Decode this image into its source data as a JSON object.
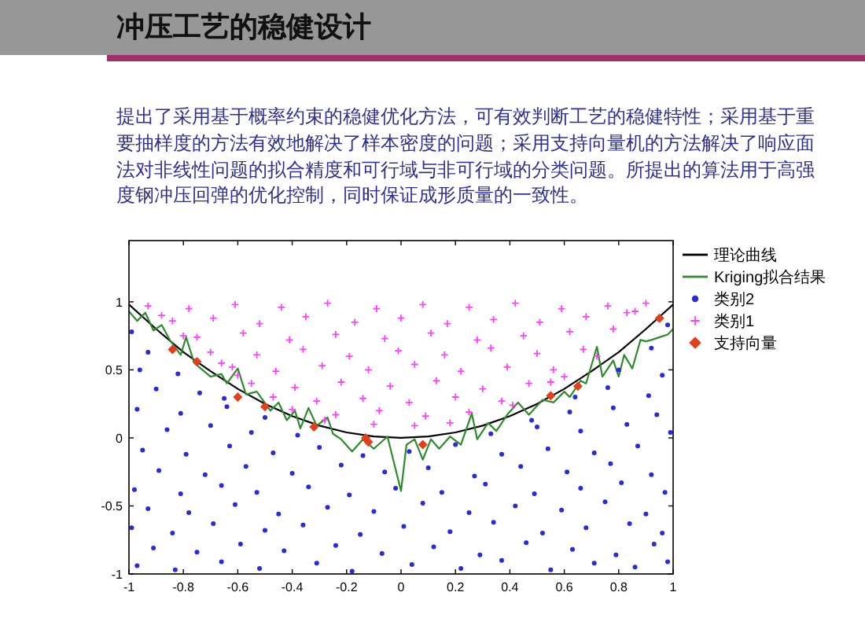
{
  "chart_data": {
    "type": "scatter",
    "title": "冲压工艺的稳健设计",
    "subtitle": "提出了采用基于概率约束的稳健优化方法，可有效判断工艺的稳健特性；采用基于重要抽样度的方法有效地解决了样本密度的问题；采用支持向量机的方法解决了响应面法对非线性问题的拟合精度和可行域与非可行域的分类问题。所提出的算法用于高强度钢冲压回弹的优化控制，同时保证成形质量的一致性。",
    "xlim": [
      -1,
      1
    ],
    "ylim": [
      -1,
      1.45
    ],
    "xticks": [
      -1,
      -0.8,
      -0.6,
      -0.4,
      -0.2,
      0,
      0.2,
      0.4,
      0.6,
      0.8,
      1
    ],
    "yticks": [
      -1,
      -0.5,
      0,
      0.5,
      1
    ],
    "legend": "top right",
    "series": [
      {
        "name": "理论曲线",
        "type": "line",
        "color": "#000000",
        "marker": "none",
        "x": [
          -1,
          -0.9,
          -0.8,
          -0.7,
          -0.6,
          -0.5,
          -0.4,
          -0.3,
          -0.2,
          -0.1,
          0,
          0.1,
          0.2,
          0.3,
          0.4,
          0.5,
          0.6,
          0.7,
          0.8,
          0.9,
          1
        ],
        "values": [
          0.98,
          0.8,
          0.63,
          0.49,
          0.36,
          0.25,
          0.16,
          0.09,
          0.04,
          0.01,
          0,
          0.01,
          0.04,
          0.09,
          0.16,
          0.25,
          0.36,
          0.49,
          0.63,
          0.8,
          0.98
        ]
      },
      {
        "name": "Kriging拟合结果",
        "type": "line",
        "color": "#2e8b2e",
        "marker": "none",
        "x": [
          -1.0,
          -0.97,
          -0.94,
          -0.91,
          -0.88,
          -0.85,
          -0.81,
          -0.79,
          -0.76,
          -0.73,
          -0.7,
          -0.66,
          -0.64,
          -0.6,
          -0.57,
          -0.53,
          -0.48,
          -0.45,
          -0.42,
          -0.39,
          -0.37,
          -0.34,
          -0.31,
          -0.27,
          -0.25,
          -0.22,
          -0.18,
          -0.14,
          -0.1,
          -0.05,
          0.0,
          0.02,
          0.05,
          0.08,
          0.11,
          0.14,
          0.18,
          0.22,
          0.26,
          0.28,
          0.32,
          0.35,
          0.39,
          0.43,
          0.47,
          0.52,
          0.56,
          0.6,
          0.62,
          0.66,
          0.68,
          0.72,
          0.74,
          0.78,
          0.8,
          0.82,
          0.85,
          0.88,
          0.9,
          0.92,
          0.95,
          0.98,
          1.0
        ],
        "values": [
          0.93,
          0.86,
          0.92,
          0.79,
          0.83,
          0.72,
          0.61,
          0.74,
          0.55,
          0.5,
          0.45,
          0.47,
          0.4,
          0.51,
          0.32,
          0.34,
          0.2,
          0.26,
          0.13,
          0.2,
          0.07,
          0.22,
          0.09,
          0.15,
          0.03,
          -0.01,
          -0.1,
          -0.01,
          -0.08,
          0.01,
          -0.39,
          -0.05,
          -0.01,
          -0.16,
          -0.01,
          -0.08,
          0.01,
          -0.05,
          0.18,
          -0.01,
          0.11,
          0.05,
          0.17,
          0.26,
          0.17,
          0.28,
          0.26,
          0.34,
          0.3,
          0.42,
          0.4,
          0.67,
          0.45,
          0.57,
          0.45,
          0.61,
          0.51,
          0.72,
          0.71,
          0.72,
          0.74,
          0.76,
          0.8
        ]
      },
      {
        "name": "类别2",
        "type": "scatter",
        "color": "#2a2ad6",
        "marker": "circle",
        "x": [
          -0.97,
          -0.83,
          -0.66,
          -0.52,
          -0.31,
          -0.18,
          0.04,
          0.22,
          0.37,
          0.55,
          0.71,
          0.86,
          0.98,
          -0.91,
          -0.75,
          -0.59,
          -0.43,
          -0.24,
          -0.07,
          0.12,
          0.29,
          0.46,
          0.63,
          0.79,
          0.93,
          -0.99,
          -0.84,
          -0.69,
          -0.5,
          -0.36,
          -0.15,
          0.01,
          0.18,
          0.34,
          0.52,
          0.68,
          0.84,
          0.96,
          -0.93,
          -0.78,
          -0.61,
          -0.45,
          -0.27,
          -0.1,
          0.08,
          0.25,
          0.42,
          0.59,
          0.75,
          0.9,
          -0.98,
          -0.81,
          -0.66,
          -0.53,
          -0.34,
          -0.19,
          -0.02,
          0.15,
          0.31,
          0.49,
          0.66,
          0.81,
          0.97,
          -0.89,
          -0.72,
          -0.57,
          -0.4,
          -0.22,
          -0.06,
          0.1,
          0.27,
          0.44,
          0.61,
          0.77,
          0.92,
          -0.95,
          -0.79,
          -0.63,
          -0.47,
          -0.3,
          -0.14,
          0.03,
          0.2,
          0.37,
          0.54,
          0.71,
          0.87,
          -0.86,
          -0.7,
          -0.55,
          -0.38,
          0.33,
          0.5,
          0.66,
          0.83,
          0.99,
          -0.97,
          -0.81,
          -0.64,
          -0.5,
          0.48,
          0.62,
          0.78,
          0.94,
          -0.9,
          -0.74,
          -0.65,
          0.64,
          0.76,
          0.91,
          -0.96,
          -0.82,
          0.8,
          0.96,
          -0.93,
          -0.99,
          0.92,
          0.98
        ],
        "values": [
          -0.94,
          -0.97,
          -0.91,
          -0.96,
          -0.92,
          -0.98,
          -0.93,
          -0.96,
          -0.9,
          -0.97,
          -0.92,
          -0.95,
          -0.91,
          -0.81,
          -0.84,
          -0.78,
          -0.83,
          -0.79,
          -0.85,
          -0.8,
          -0.86,
          -0.77,
          -0.82,
          -0.86,
          -0.78,
          -0.66,
          -0.7,
          -0.63,
          -0.68,
          -0.64,
          -0.71,
          -0.65,
          -0.69,
          -0.62,
          -0.7,
          -0.66,
          -0.63,
          -0.7,
          -0.52,
          -0.55,
          -0.49,
          -0.56,
          -0.51,
          -0.54,
          -0.48,
          -0.55,
          -0.5,
          -0.53,
          -0.47,
          -0.56,
          -0.38,
          -0.41,
          -0.35,
          -0.4,
          -0.36,
          -0.42,
          -0.37,
          -0.4,
          -0.34,
          -0.41,
          -0.37,
          -0.33,
          -0.4,
          -0.24,
          -0.27,
          -0.21,
          -0.26,
          -0.2,
          -0.25,
          -0.22,
          -0.28,
          -0.21,
          -0.25,
          -0.19,
          -0.27,
          -0.09,
          -0.12,
          -0.06,
          -0.11,
          -0.07,
          -0.13,
          -0.1,
          -0.05,
          -0.12,
          -0.08,
          -0.11,
          -0.06,
          0.06,
          0.09,
          0.04,
          0.02,
          0.03,
          0.08,
          0.05,
          0.1,
          0.04,
          0.21,
          0.18,
          0.23,
          0.15,
          0.13,
          0.19,
          0.22,
          0.17,
          0.36,
          0.33,
          0.29,
          0.3,
          0.37,
          0.31,
          0.5,
          0.47,
          0.5,
          0.46,
          0.63,
          0.78,
          0.66,
          0.83
        ]
      },
      {
        "name": "类别1",
        "type": "scatter",
        "color": "#ff40ff",
        "marker": "cross",
        "x": [
          -0.93,
          -0.78,
          -0.61,
          -0.44,
          -0.27,
          -0.09,
          0.08,
          0.25,
          0.42,
          0.59,
          0.76,
          0.9,
          -0.84,
          -0.69,
          -0.52,
          -0.35,
          -0.17,
          0.0,
          0.17,
          0.34,
          0.51,
          0.68,
          0.83,
          -0.75,
          -0.58,
          -0.41,
          -0.24,
          -0.06,
          0.11,
          0.28,
          0.45,
          0.62,
          0.78,
          -0.7,
          -0.53,
          -0.36,
          -0.19,
          -0.01,
          0.16,
          0.33,
          0.5,
          0.67,
          -0.62,
          -0.46,
          -0.29,
          -0.12,
          0.05,
          0.22,
          0.39,
          0.56,
          0.72,
          -0.55,
          -0.39,
          -0.22,
          -0.04,
          0.13,
          0.3,
          0.47,
          -0.47,
          -0.31,
          -0.14,
          0.03,
          0.2,
          0.37,
          0.55,
          -0.4,
          -0.24,
          -0.08,
          0.09,
          0.25,
          0.41,
          -0.28,
          -0.1,
          0.05,
          0.18,
          -0.6,
          -0.66,
          -0.8,
          -0.88,
          0.86,
          0.6
        ],
        "values": [
          0.97,
          0.95,
          0.98,
          0.96,
          0.99,
          0.95,
          0.98,
          0.96,
          0.99,
          0.95,
          0.97,
          0.99,
          0.86,
          0.88,
          0.84,
          0.89,
          0.85,
          0.88,
          0.84,
          0.87,
          0.85,
          0.89,
          0.92,
          0.74,
          0.77,
          0.72,
          0.76,
          0.73,
          0.77,
          0.72,
          0.75,
          0.78,
          0.8,
          0.63,
          0.61,
          0.65,
          0.6,
          0.64,
          0.61,
          0.66,
          0.62,
          0.65,
          0.52,
          0.49,
          0.53,
          0.5,
          0.54,
          0.49,
          0.52,
          0.5,
          0.6,
          0.4,
          0.37,
          0.41,
          0.38,
          0.42,
          0.36,
          0.4,
          0.3,
          0.27,
          0.29,
          0.26,
          0.3,
          0.27,
          0.41,
          0.21,
          0.17,
          0.2,
          0.16,
          0.19,
          0.24,
          0.13,
          0.1,
          0.09,
          0.11,
          0.46,
          0.55,
          0.75,
          0.9,
          0.93,
          0.45
        ]
      },
      {
        "name": "支持向量",
        "type": "scatter",
        "color": "#e0401c",
        "marker": "diamond",
        "x": [
          -0.84,
          -0.75,
          -0.6,
          -0.5,
          -0.32,
          -0.13,
          -0.12,
          0.08,
          0.55,
          0.65,
          0.95
        ],
        "values": [
          0.65,
          0.56,
          0.3,
          0.23,
          0.08,
          0.0,
          -0.03,
          -0.05,
          0.31,
          0.38,
          0.88
        ]
      }
    ]
  }
}
